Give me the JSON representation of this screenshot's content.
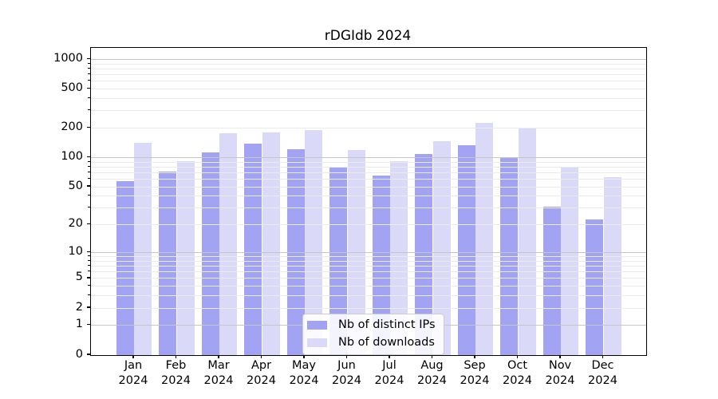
{
  "chart_data": {
    "type": "bar",
    "title": "rDGIdb 2024",
    "x_axis": {
      "months": [
        "Jan",
        "Feb",
        "Mar",
        "Apr",
        "May",
        "Jun",
        "Jul",
        "Aug",
        "Sep",
        "Oct",
        "Nov",
        "Dec"
      ],
      "year": "2024"
    },
    "y_axis": {
      "scale": "log1p",
      "max": 1310,
      "ticks": [
        0,
        1,
        2,
        5,
        10,
        20,
        50,
        100,
        200,
        500,
        1000
      ],
      "major_grid": [
        1,
        10,
        100,
        1000
      ],
      "minor_grid": [
        2,
        3,
        4,
        5,
        6,
        7,
        8,
        9,
        20,
        30,
        40,
        50,
        60,
        70,
        80,
        90,
        200,
        300,
        400,
        500,
        600,
        700,
        800,
        900
      ]
    },
    "series": [
      {
        "id": "distinct-ips",
        "name": "Nb of distinct IPs",
        "color": "#a3a3f3",
        "values": [
          57,
          72,
          114,
          139,
          122,
          81,
          66,
          109,
          135,
          101,
          31,
          23
        ]
      },
      {
        "id": "downloads",
        "name": "Nb of downloads",
        "color": "#dadaf8",
        "values": [
          141,
          92,
          176,
          180,
          190,
          120,
          92,
          148,
          228,
          198,
          80,
          63
        ]
      }
    ],
    "legend_position": "lower-center",
    "grid": true
  }
}
